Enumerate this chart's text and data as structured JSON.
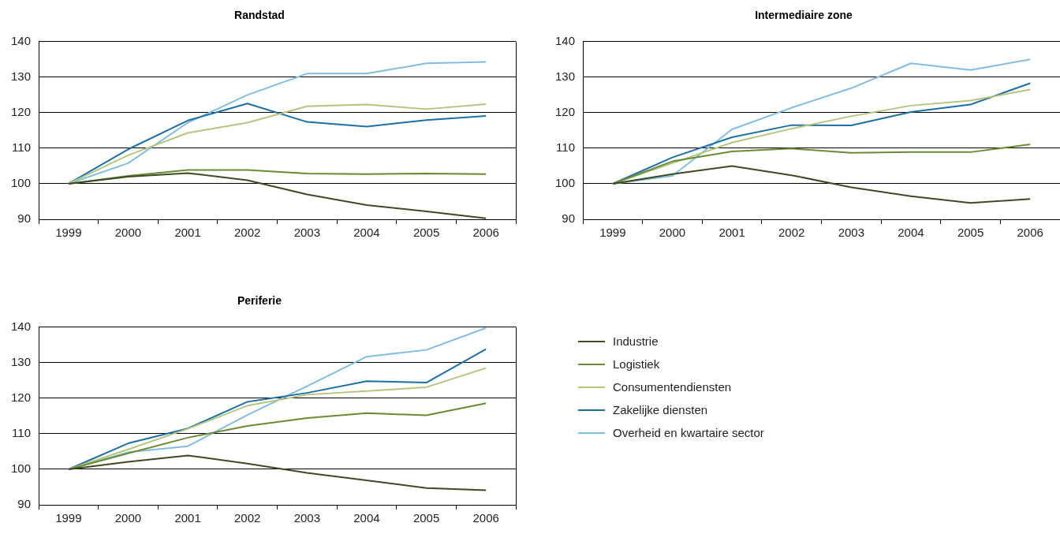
{
  "chart_data": [
    {
      "type": "line",
      "title": "Randstad",
      "categories": [
        "1999",
        "2000",
        "2001",
        "2002",
        "2003",
        "2004",
        "2005",
        "2006"
      ],
      "ylim": [
        90,
        140
      ],
      "yticks": [
        90,
        100,
        110,
        120,
        130,
        140
      ],
      "grid": "y",
      "legend": false,
      "marker": "none",
      "series": [
        {
          "color": "#3d4a23",
          "values": [
            100,
            102,
            103,
            101,
            97,
            94,
            92.2,
            90.3
          ]
        },
        {
          "color": "#6b8a35",
          "values": [
            100,
            102.2,
            103.9,
            103.9,
            102.9,
            102.7,
            102.9,
            102.7
          ]
        },
        {
          "color": "#b5c47f",
          "values": [
            100,
            108,
            114.3,
            117.2,
            121.8,
            122.3,
            121,
            122.4
          ]
        },
        {
          "color": "#1d6fa3",
          "values": [
            100,
            109.7,
            117.8,
            122.6,
            117.4,
            116.1,
            117.9,
            119.1
          ]
        },
        {
          "color": "#82bde0",
          "values": [
            100,
            105.8,
            117.2,
            125,
            131,
            131,
            133.9,
            134.3
          ]
        }
      ]
    },
    {
      "type": "line",
      "title": "Intermediaire zone",
      "categories": [
        "1999",
        "2000",
        "2001",
        "2002",
        "2003",
        "2004",
        "2005",
        "2006"
      ],
      "ylim": [
        90,
        140
      ],
      "yticks": [
        90,
        100,
        110,
        120,
        130,
        140
      ],
      "grid": "y",
      "legend": false,
      "marker": "none",
      "series": [
        {
          "color": "#3d4a23",
          "values": [
            100,
            102.7,
            105,
            102.4,
            99,
            96.5,
            94.6,
            95.7
          ]
        },
        {
          "color": "#6b8a35",
          "values": [
            100,
            106.3,
            109.1,
            109.9,
            108.7,
            108.9,
            108.9,
            111.1
          ]
        },
        {
          "color": "#b5c47f",
          "values": [
            100,
            105.8,
            111.6,
            115.5,
            119,
            122,
            123.4,
            126.5
          ]
        },
        {
          "color": "#1d6fa3",
          "values": [
            100,
            107.4,
            113.1,
            116.5,
            116.4,
            120.2,
            122.3,
            128.3
          ]
        },
        {
          "color": "#82bde0",
          "values": [
            100,
            102.2,
            115.3,
            121.4,
            126.9,
            133.9,
            132,
            135
          ]
        }
      ]
    },
    {
      "type": "line",
      "title": "Periferie",
      "categories": [
        "1999",
        "2000",
        "2001",
        "2002",
        "2003",
        "2004",
        "2005",
        "2006"
      ],
      "ylim": [
        90,
        140
      ],
      "yticks": [
        90,
        100,
        110,
        120,
        130,
        140
      ],
      "grid": "y",
      "legend": "right",
      "marker": "none",
      "series": [
        {
          "name": "Industrie",
          "color": "#3d4a23",
          "values": [
            100,
            102.1,
            103.9,
            101.6,
            99,
            96.9,
            94.7,
            94.1
          ]
        },
        {
          "name": "Logistiek",
          "color": "#6b8a35",
          "values": [
            100,
            104.5,
            108.9,
            112.2,
            114.4,
            115.8,
            115.2,
            118.6
          ]
        },
        {
          "name": "Consumentendiensten",
          "color": "#b5c47f",
          "values": [
            100,
            105.6,
            111.4,
            117.9,
            121,
            122,
            123.1,
            128.5
          ]
        },
        {
          "name": "Zakelijke diensten",
          "color": "#1d6fa3",
          "values": [
            100,
            107.3,
            111.5,
            119,
            121.5,
            124.8,
            124.4,
            133.8
          ]
        },
        {
          "name": "Overheid en kwartaire sector",
          "color": "#82bde0",
          "values": [
            100,
            104.8,
            106.5,
            115.3,
            123.4,
            131.7,
            133.6,
            139.8
          ]
        }
      ]
    }
  ]
}
